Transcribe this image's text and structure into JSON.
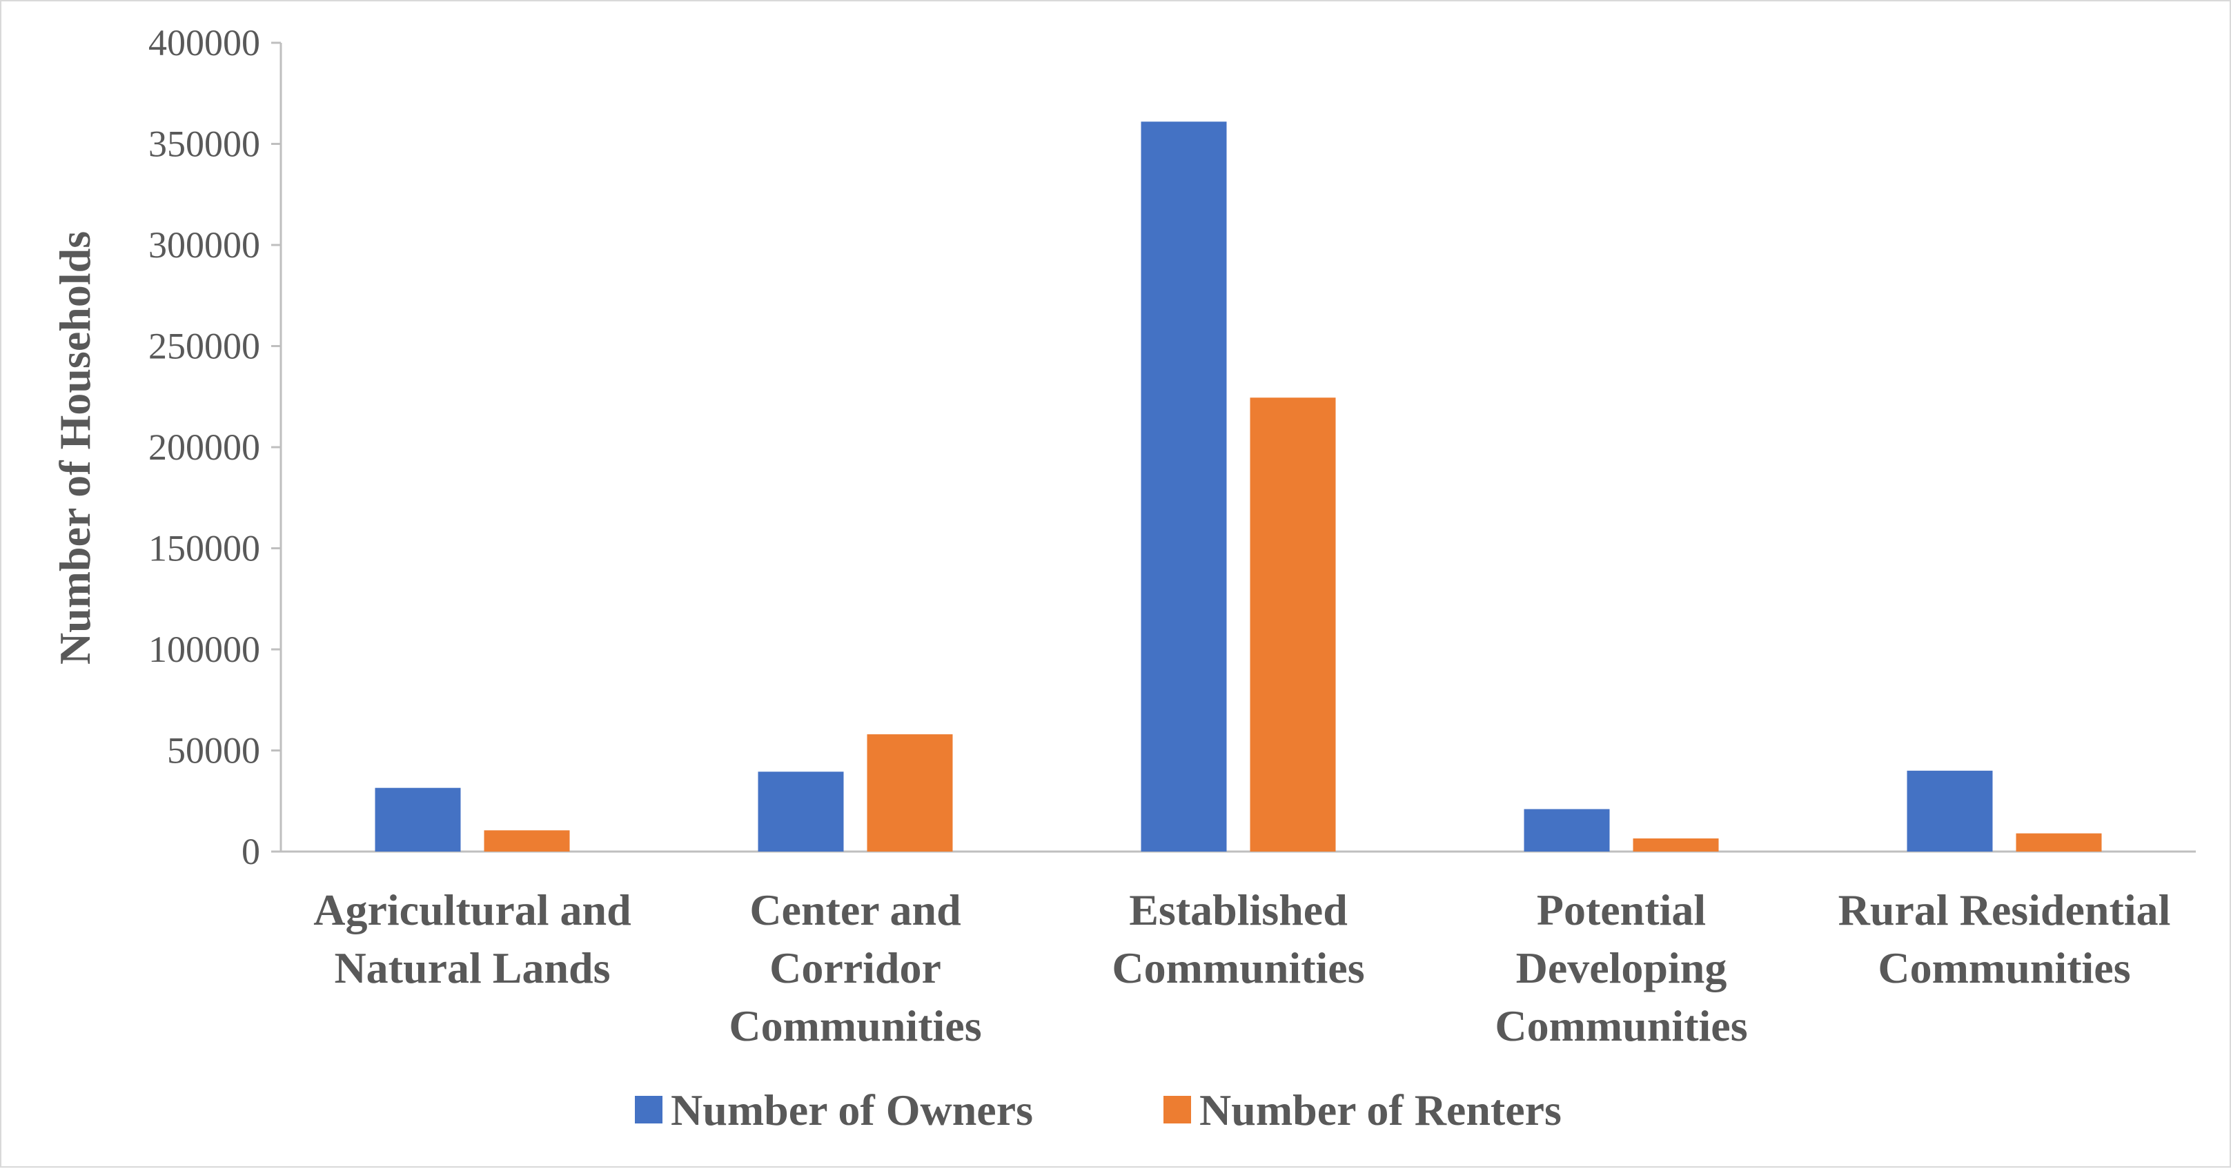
{
  "chart_data": {
    "type": "bar",
    "title": "",
    "xlabel": "",
    "ylabel": "Number of Households",
    "ylim": [
      0,
      400000
    ],
    "yticks": [
      0,
      50000,
      100000,
      150000,
      200000,
      250000,
      300000,
      350000,
      400000
    ],
    "ytick_labels": [
      "0",
      "50000",
      "100000",
      "150000",
      "200000",
      "250000",
      "300000",
      "350000",
      "400000"
    ],
    "grid": false,
    "legend_position": "bottom",
    "categories": [
      [
        "Agricultural and",
        "Natural Lands"
      ],
      [
        "Center and",
        "Corridor",
        "Communities"
      ],
      [
        "Established",
        "Communities"
      ],
      [
        "Potential",
        "Developing",
        "Communities"
      ],
      [
        "Rural Residential",
        "Communities"
      ]
    ],
    "series": [
      {
        "name": "Number of Owners",
        "color": "#4472c4",
        "values": [
          31500,
          39500,
          361000,
          21000,
          40000
        ]
      },
      {
        "name": "Number of Renters",
        "color": "#ed7d31",
        "values": [
          10500,
          58000,
          224500,
          6500,
          9000
        ]
      }
    ]
  }
}
